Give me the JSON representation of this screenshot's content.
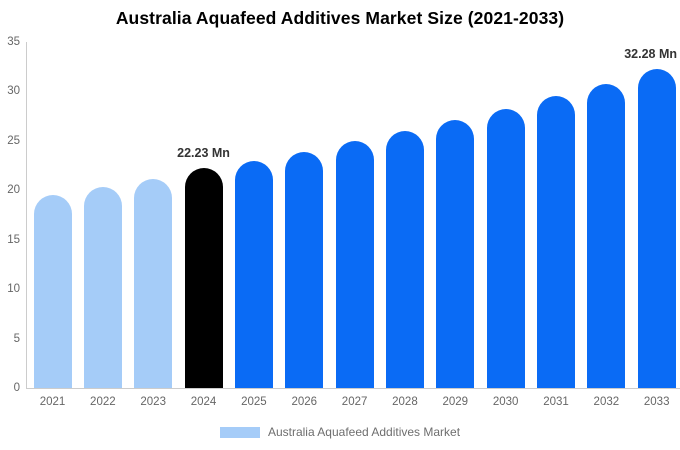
{
  "chart_data": {
    "type": "bar",
    "title": "Australia Aquafeed Additives Market Size (2021-2033)",
    "categories": [
      "2021",
      "2022",
      "2023",
      "2024",
      "2025",
      "2026",
      "2027",
      "2028",
      "2029",
      "2030",
      "2031",
      "2032",
      "2033"
    ],
    "values": [
      19.5,
      20.3,
      21.1,
      22.23,
      23.0,
      23.9,
      25.0,
      26.0,
      27.1,
      28.2,
      29.5,
      30.8,
      32.28
    ],
    "unit": "Mn",
    "xlabel": "",
    "ylabel": "",
    "ylim": [
      0,
      35
    ],
    "yticks": [
      0,
      5,
      10,
      15,
      20,
      25,
      30,
      35
    ],
    "grid": false,
    "legend_position": "bottom",
    "bar_colors": [
      "#A5CCF8",
      "#A5CCF8",
      "#A5CCF8",
      "#000000",
      "#0A6BF5",
      "#0A6BF5",
      "#0A6BF5",
      "#0A6BF5",
      "#0A6BF5",
      "#0A6BF5",
      "#0A6BF5",
      "#0A6BF5",
      "#0A6BF5"
    ],
    "annotations": [
      {
        "category": "2024",
        "text": "22.23 Mn"
      },
      {
        "category": "2033",
        "text": "32.28 Mn"
      }
    ],
    "colors": {
      "historical_bar": "#A5CCF8",
      "highlight_bar": "#000000",
      "forecast_bar": "#0A6BF5",
      "axis_line": "#cccccc",
      "tick_text": "#666666",
      "annotation_text": "#333333"
    }
  },
  "legend": {
    "label": "Australia Aquafeed Additives Market",
    "swatch_color": "#A5CCF8"
  }
}
